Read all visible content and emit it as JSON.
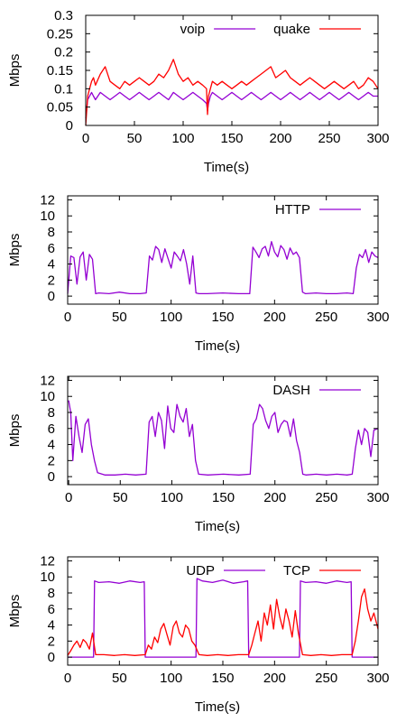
{
  "chart_data": [
    {
      "type": "line",
      "xlabel": "Time(s)",
      "ylabel": "Mbps",
      "xlim": [
        0,
        300
      ],
      "ylim": [
        0,
        0.3
      ],
      "xticks": [
        0,
        50,
        100,
        150,
        200,
        250,
        300
      ],
      "yticks": [
        0,
        0.05,
        0.1,
        0.15,
        0.2,
        0.25,
        0.3
      ],
      "grid": false,
      "legend": "top-right",
      "series": [
        {
          "name": "voip",
          "color": "#9400d3",
          "x": [
            0,
            2,
            4,
            6,
            8,
            10,
            15,
            20,
            25,
            30,
            35,
            40,
            45,
            50,
            55,
            60,
            65,
            70,
            75,
            80,
            85,
            90,
            95,
            100,
            105,
            110,
            115,
            120,
            124,
            125,
            126,
            128,
            130,
            135,
            140,
            145,
            150,
            155,
            160,
            165,
            170,
            175,
            180,
            185,
            190,
            195,
            200,
            205,
            210,
            215,
            220,
            225,
            230,
            235,
            240,
            245,
            250,
            255,
            260,
            265,
            270,
            275,
            280,
            285,
            290,
            295,
            300
          ],
          "y": [
            0.02,
            0.07,
            0.08,
            0.09,
            0.08,
            0.07,
            0.09,
            0.08,
            0.07,
            0.08,
            0.09,
            0.08,
            0.07,
            0.08,
            0.09,
            0.08,
            0.07,
            0.08,
            0.09,
            0.08,
            0.07,
            0.09,
            0.08,
            0.07,
            0.08,
            0.09,
            0.08,
            0.07,
            0.06,
            0.04,
            0.06,
            0.08,
            0.09,
            0.08,
            0.07,
            0.08,
            0.09,
            0.08,
            0.07,
            0.08,
            0.09,
            0.08,
            0.07,
            0.08,
            0.09,
            0.08,
            0.07,
            0.08,
            0.09,
            0.08,
            0.07,
            0.08,
            0.09,
            0.08,
            0.07,
            0.08,
            0.09,
            0.08,
            0.07,
            0.08,
            0.09,
            0.08,
            0.07,
            0.08,
            0.09,
            0.08,
            0.08
          ]
        },
        {
          "name": "quake",
          "color": "#ff0000",
          "x": [
            0,
            2,
            4,
            6,
            8,
            10,
            15,
            20,
            25,
            30,
            35,
            40,
            45,
            50,
            55,
            60,
            65,
            70,
            75,
            80,
            85,
            90,
            95,
            100,
            105,
            110,
            115,
            120,
            124,
            125,
            126,
            128,
            130,
            135,
            140,
            145,
            150,
            155,
            160,
            165,
            170,
            175,
            180,
            185,
            190,
            195,
            200,
            205,
            210,
            215,
            220,
            225,
            230,
            235,
            240,
            245,
            250,
            255,
            260,
            265,
            270,
            275,
            280,
            285,
            290,
            295,
            300
          ],
          "y": [
            0.0,
            0.08,
            0.1,
            0.12,
            0.13,
            0.11,
            0.14,
            0.16,
            0.12,
            0.11,
            0.1,
            0.12,
            0.11,
            0.12,
            0.13,
            0.12,
            0.11,
            0.12,
            0.14,
            0.13,
            0.15,
            0.18,
            0.14,
            0.12,
            0.13,
            0.11,
            0.12,
            0.11,
            0.1,
            0.03,
            0.08,
            0.1,
            0.12,
            0.11,
            0.12,
            0.11,
            0.1,
            0.11,
            0.12,
            0.11,
            0.12,
            0.13,
            0.14,
            0.15,
            0.16,
            0.13,
            0.14,
            0.15,
            0.13,
            0.12,
            0.11,
            0.12,
            0.13,
            0.12,
            0.11,
            0.1,
            0.11,
            0.12,
            0.11,
            0.1,
            0.11,
            0.12,
            0.1,
            0.11,
            0.13,
            0.12,
            0.1
          ]
        }
      ]
    },
    {
      "type": "line",
      "xlabel": "Time(s)",
      "ylabel": "Mbps",
      "xlim": [
        0,
        300
      ],
      "ylim": [
        -1,
        12.5
      ],
      "xticks": [
        0,
        50,
        100,
        150,
        200,
        250,
        300
      ],
      "yticks": [
        0,
        2,
        4,
        6,
        8,
        10,
        12
      ],
      "grid": false,
      "legend": "top-right",
      "series": [
        {
          "name": "HTTP",
          "color": "#9400d3",
          "x": [
            0,
            3,
            6,
            9,
            12,
            15,
            18,
            21,
            24,
            27,
            30,
            40,
            50,
            60,
            70,
            76,
            79,
            82,
            85,
            88,
            91,
            94,
            97,
            100,
            103,
            106,
            109,
            112,
            115,
            118,
            121,
            124,
            127,
            135,
            150,
            165,
            176,
            179,
            182,
            185,
            188,
            191,
            194,
            197,
            200,
            203,
            206,
            209,
            212,
            215,
            218,
            221,
            224,
            227,
            230,
            240,
            250,
            260,
            270,
            276,
            279,
            282,
            285,
            288,
            291,
            294,
            297,
            300
          ],
          "y": [
            0.3,
            5.0,
            4.8,
            1.5,
            4.9,
            5.5,
            2.0,
            5.2,
            4.6,
            0.3,
            0.4,
            0.3,
            0.5,
            0.3,
            0.3,
            0.4,
            5.0,
            4.5,
            6.2,
            5.8,
            4.2,
            5.9,
            4.7,
            3.5,
            5.5,
            5.0,
            4.4,
            5.8,
            4.0,
            1.5,
            5.0,
            0.4,
            0.3,
            0.3,
            0.4,
            0.3,
            0.3,
            6.1,
            5.5,
            4.8,
            5.9,
            6.2,
            5.0,
            6.8,
            5.5,
            4.9,
            6.3,
            5.8,
            4.6,
            6.0,
            5.2,
            5.5,
            4.8,
            0.5,
            0.3,
            0.4,
            0.3,
            0.3,
            0.4,
            0.3,
            3.5,
            5.2,
            4.8,
            5.8,
            4.2,
            5.5,
            5.0,
            4.8
          ]
        }
      ]
    },
    {
      "type": "line",
      "xlabel": "Time(s)",
      "ylabel": "Mbps",
      "xlim": [
        -1,
        300
      ],
      "ylim": [
        -1,
        12.5
      ],
      "xticks": [
        0,
        50,
        100,
        150,
        200,
        250,
        300
      ],
      "yticks": [
        0,
        2,
        4,
        6,
        8,
        10,
        12
      ],
      "grid": false,
      "legend": "top-right",
      "series": [
        {
          "name": "DASH",
          "color": "#9400d3",
          "x": [
            0,
            2,
            4,
            7,
            10,
            13,
            16,
            19,
            22,
            25,
            28,
            35,
            45,
            55,
            65,
            75,
            78,
            81,
            84,
            87,
            90,
            93,
            96,
            99,
            102,
            105,
            108,
            111,
            114,
            117,
            120,
            123,
            126,
            135,
            150,
            165,
            176,
            179,
            182,
            185,
            188,
            191,
            194,
            197,
            200,
            203,
            206,
            209,
            212,
            215,
            218,
            221,
            224,
            227,
            230,
            240,
            250,
            260,
            270,
            275,
            278,
            281,
            284,
            287,
            290,
            293,
            296,
            300
          ],
          "y": [
            9.5,
            8.0,
            2.0,
            7.5,
            5.0,
            3.0,
            6.5,
            7.2,
            4.0,
            2.0,
            0.5,
            0.2,
            0.2,
            0.3,
            0.2,
            0.3,
            6.8,
            7.5,
            5.0,
            8.0,
            7.0,
            3.5,
            8.8,
            6.0,
            5.5,
            9.0,
            7.5,
            6.8,
            8.5,
            5.0,
            6.5,
            2.0,
            0.3,
            0.2,
            0.3,
            0.2,
            0.3,
            6.5,
            7.2,
            9.0,
            8.5,
            7.0,
            6.0,
            7.5,
            8.0,
            5.5,
            6.5,
            7.0,
            6.8,
            5.0,
            7.2,
            4.5,
            3.0,
            0.3,
            0.2,
            0.3,
            0.2,
            0.3,
            0.2,
            0.3,
            3.5,
            5.8,
            4.0,
            6.0,
            5.5,
            2.5,
            5.8,
            6.0
          ]
        }
      ]
    },
    {
      "type": "line",
      "xlabel": "Time(s)",
      "ylabel": "Mbps",
      "xlim": [
        0,
        300
      ],
      "ylim": [
        -1,
        12.5
      ],
      "xticks": [
        0,
        50,
        100,
        150,
        200,
        250,
        300
      ],
      "yticks": [
        0,
        2,
        4,
        6,
        8,
        10,
        12
      ],
      "grid": false,
      "legend": "top-right",
      "series": [
        {
          "name": "UDP",
          "color": "#9400d3",
          "x": [
            0,
            25,
            26,
            30,
            40,
            50,
            60,
            70,
            74,
            75,
            80,
            100,
            124,
            125,
            130,
            140,
            150,
            160,
            170,
            174,
            175,
            180,
            200,
            224,
            225,
            230,
            240,
            250,
            260,
            270,
            274,
            275,
            280,
            300
          ],
          "y": [
            0.0,
            0.0,
            9.5,
            9.3,
            9.4,
            9.2,
            9.5,
            9.3,
            9.4,
            0.0,
            0.0,
            0.0,
            0.0,
            9.8,
            9.5,
            9.3,
            9.6,
            9.2,
            9.4,
            9.5,
            0.0,
            0.0,
            0.0,
            0.0,
            9.5,
            9.3,
            9.4,
            9.2,
            9.5,
            9.3,
            9.4,
            0.0,
            0.0,
            0.0
          ]
        },
        {
          "name": "TCP",
          "color": "#ff0000",
          "x": [
            0,
            3,
            6,
            9,
            12,
            15,
            18,
            21,
            24,
            27,
            35,
            45,
            55,
            65,
            75,
            78,
            81,
            84,
            87,
            90,
            93,
            96,
            99,
            102,
            105,
            108,
            111,
            114,
            117,
            120,
            123,
            127,
            135,
            145,
            155,
            165,
            175,
            178,
            181,
            184,
            187,
            190,
            193,
            196,
            199,
            202,
            205,
            208,
            211,
            214,
            217,
            220,
            223,
            227,
            235,
            245,
            255,
            265,
            275,
            278,
            281,
            284,
            287,
            290,
            293,
            296,
            300
          ],
          "y": [
            0.2,
            0.8,
            1.5,
            2.0,
            1.2,
            2.2,
            1.8,
            1.0,
            3.0,
            0.3,
            0.3,
            0.2,
            0.3,
            0.2,
            0.3,
            1.5,
            1.0,
            2.5,
            1.8,
            3.5,
            4.2,
            2.8,
            1.5,
            3.8,
            4.5,
            3.0,
            2.5,
            4.0,
            3.5,
            2.0,
            1.5,
            0.3,
            0.2,
            0.3,
            0.2,
            0.3,
            0.3,
            1.5,
            3.0,
            4.5,
            2.0,
            5.5,
            4.0,
            6.5,
            3.5,
            7.2,
            5.0,
            3.5,
            6.0,
            4.5,
            2.5,
            5.8,
            3.0,
            0.3,
            0.2,
            0.3,
            0.2,
            0.3,
            0.3,
            2.0,
            4.5,
            7.5,
            8.5,
            6.0,
            4.5,
            5.5,
            3.5
          ]
        }
      ]
    }
  ]
}
